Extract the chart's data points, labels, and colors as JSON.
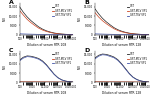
{
  "dilutions": [
    100,
    200,
    400,
    800,
    1600,
    3200,
    6400,
    12800,
    25600,
    51200,
    102400,
    204800,
    409600,
    819200,
    1638400
  ],
  "lines": {
    "A": {
      "GST": [
        15000,
        12000,
        9500,
        7500,
        5800,
        4200,
        3000,
        2100,
        1450,
        950,
        600,
        380,
        240,
        150,
        100
      ],
      "GST-MCV-VP1": [
        13000,
        10500,
        8200,
        6400,
        4900,
        3500,
        2500,
        1750,
        1200,
        780,
        490,
        310,
        195,
        125,
        85
      ],
      "GST-TSV-VP1": [
        500,
        420,
        360,
        300,
        250,
        200,
        165,
        135,
        110,
        90,
        75,
        62,
        52,
        45,
        40
      ]
    },
    "B": {
      "GST": [
        14000,
        11200,
        8800,
        6900,
        5300,
        3800,
        2700,
        1900,
        1300,
        850,
        540,
        340,
        215,
        135,
        90
      ],
      "GST-MCV-VP1": [
        12000,
        9500,
        7500,
        5900,
        4500,
        3200,
        2250,
        1580,
        1080,
        700,
        445,
        280,
        178,
        112,
        76
      ],
      "GST-TSV-VP1": [
        480,
        405,
        345,
        288,
        238,
        192,
        158,
        129,
        106,
        87,
        72,
        60,
        50,
        43,
        38
      ]
    },
    "C": {
      "GST": [
        12000,
        13500,
        14200,
        14000,
        13500,
        12800,
        11500,
        9500,
        7000,
        4500,
        2600,
        1400,
        750,
        400,
        220
      ],
      "GST-MCV-VP1": [
        350,
        340,
        330,
        320,
        310,
        305,
        300,
        295,
        285,
        275,
        260,
        245,
        230,
        215,
        200
      ],
      "GST-TSV-VP1": [
        11500,
        13000,
        13800,
        13600,
        13100,
        12400,
        11100,
        9200,
        6700,
        4300,
        2450,
        1320,
        700,
        375,
        205
      ]
    },
    "D": {
      "GST": [
        13000,
        14500,
        15200,
        15000,
        14400,
        13600,
        12200,
        10000,
        7400,
        4800,
        2800,
        1550,
        840,
        450,
        250
      ],
      "GST-MCV-VP1": [
        360,
        350,
        338,
        328,
        318,
        310,
        305,
        298,
        288,
        278,
        263,
        248,
        233,
        218,
        203
      ],
      "GST-TSV-VP1": [
        12500,
        14000,
        14800,
        14600,
        13900,
        13200,
        11800,
        9700,
        7100,
        4600,
        2650,
        1450,
        780,
        420,
        230
      ]
    }
  },
  "colors": {
    "GST": "#222222",
    "GST-MCV-VP1": "#cc4422",
    "GST-TSV-VP1": "#4455aa"
  },
  "legend_labels": {
    "GST": "GST",
    "GST-MCV-VP1": "GST-MCV VP1",
    "GST-TSV-VP1": "GST-TSV VP1"
  },
  "panels": [
    "A",
    "B",
    "C",
    "D"
  ],
  "xlabels": {
    "A": "Dilution of serum RTR 108",
    "B": "Dilution of serum RTR 128",
    "C": "Dilution of serum RTR 108",
    "D": "Dilution of serum RTR 128"
  },
  "ylabel": "MFI",
  "ylim_AB": [
    0,
    17000
  ],
  "ylim_CD": [
    0,
    17000
  ]
}
